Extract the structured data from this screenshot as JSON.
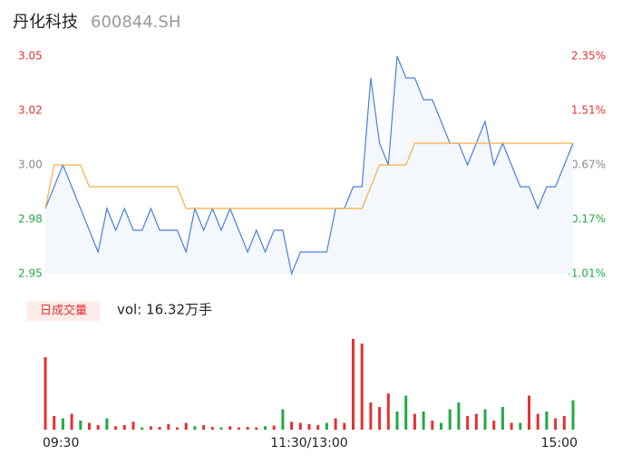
{
  "header": {
    "title": "丹化科技",
    "code": "600844.SH"
  },
  "chart_data": [
    {
      "type": "line",
      "x": [
        0,
        4,
        8,
        12,
        16,
        20,
        24,
        28,
        32,
        36,
        40,
        44,
        48,
        52,
        56,
        60,
        64,
        68,
        72,
        76,
        80,
        84,
        88,
        92,
        96,
        100,
        104,
        108,
        112,
        116,
        120,
        124,
        128,
        132,
        136,
        140,
        144,
        148,
        152,
        156,
        160,
        164,
        168,
        172,
        176,
        180,
        184,
        188,
        192,
        196,
        200,
        204,
        208,
        212,
        216,
        220,
        224,
        228,
        232,
        236,
        240
      ],
      "xlim": [
        0,
        240
      ],
      "xticks": [
        {
          "value": 0,
          "label": "09:30"
        },
        {
          "value": 120,
          "label": "11:30/13:00"
        },
        {
          "value": 240,
          "label": "15:00"
        }
      ],
      "series": [
        {
          "name": "price",
          "color": "#4a7fe0",
          "values": [
            2.98,
            2.99,
            3.0,
            2.99,
            2.98,
            2.97,
            2.96,
            2.98,
            2.97,
            2.98,
            2.97,
            2.97,
            2.98,
            2.97,
            2.97,
            2.97,
            2.96,
            2.98,
            2.97,
            2.98,
            2.97,
            2.98,
            2.97,
            2.96,
            2.97,
            2.96,
            2.97,
            2.97,
            2.95,
            2.96,
            2.96,
            2.96,
            2.96,
            2.98,
            2.98,
            2.99,
            2.99,
            3.04,
            3.01,
            3.0,
            3.05,
            3.04,
            3.04,
            3.03,
            3.03,
            3.02,
            3.01,
            3.01,
            3.0,
            3.01,
            3.02,
            3.0,
            3.01,
            3.0,
            2.99,
            2.99,
            2.98,
            2.99,
            2.99,
            3.0,
            3.01
          ]
        },
        {
          "name": "average",
          "color": "#f5b041",
          "values": [
            2.98,
            3.0,
            3.0,
            3.0,
            3.0,
            2.99,
            2.99,
            2.99,
            2.99,
            2.99,
            2.99,
            2.99,
            2.99,
            2.99,
            2.99,
            2.99,
            2.98,
            2.98,
            2.98,
            2.98,
            2.98,
            2.98,
            2.98,
            2.98,
            2.98,
            2.98,
            2.98,
            2.98,
            2.98,
            2.98,
            2.98,
            2.98,
            2.98,
            2.98,
            2.98,
            2.98,
            2.98,
            2.99,
            3.0,
            3.0,
            3.0,
            3.0,
            3.01,
            3.01,
            3.01,
            3.01,
            3.01,
            3.01,
            3.01,
            3.01,
            3.01,
            3.01,
            3.01,
            3.01,
            3.01,
            3.01,
            3.01,
            3.01,
            3.01,
            3.01,
            3.01
          ]
        }
      ],
      "ylim": [
        2.95,
        3.05
      ],
      "yticks": [
        {
          "value": 2.95,
          "label": "2.95"
        },
        {
          "value": 2.975,
          "label": "2.98"
        },
        {
          "value": 3.0,
          "label": "3.00"
        },
        {
          "value": 3.025,
          "label": "3.02"
        },
        {
          "value": 3.05,
          "label": "3.05"
        }
      ],
      "y2lim": [
        -1.01,
        2.35
      ],
      "y2ticks": [
        {
          "value": -1.01,
          "label": "-1.01%"
        },
        {
          "value": -0.17,
          "label": "-0.17%"
        },
        {
          "value": 0.67,
          "label": "0.67%"
        },
        {
          "value": 1.51,
          "label": "1.51%"
        },
        {
          "value": 2.35,
          "label": "2.35%"
        }
      ]
    },
    {
      "type": "bar",
      "title": "日成交量",
      "subtitle": "vol: 16.32万手",
      "ylim": [
        0,
        4000
      ],
      "values": [
        3200,
        600,
        500,
        700,
        400,
        300,
        200,
        500,
        150,
        200,
        350,
        100,
        150,
        120,
        250,
        100,
        300,
        150,
        200,
        120,
        100,
        150,
        100,
        120,
        100,
        150,
        180,
        900,
        350,
        300,
        250,
        200,
        300,
        500,
        300,
        4000,
        3800,
        1200,
        1000,
        1600,
        800,
        1500,
        700,
        800,
        400,
        300,
        900,
        1200,
        600,
        700,
        900,
        400,
        1000,
        300,
        300,
        1500,
        700,
        800,
        500,
        600,
        1300
      ],
      "colors": [
        "#e83030",
        "#e83030",
        "#22aa44",
        "#e83030",
        "#22aa44",
        "#e83030",
        "#e83030",
        "#22aa44",
        "#e83030",
        "#e83030",
        "#e83030",
        "#22aa44",
        "#e83030",
        "#e83030",
        "#e83030",
        "#e83030",
        "#e83030",
        "#22aa44",
        "#e83030",
        "#e83030",
        "#22aa44",
        "#e83030",
        "#e83030",
        "#e83030",
        "#e83030",
        "#22aa44",
        "#e83030",
        "#22aa44",
        "#e83030",
        "#e83030",
        "#e83030",
        "#e83030",
        "#22aa44",
        "#e83030",
        "#e83030",
        "#e83030",
        "#e83030",
        "#e83030",
        "#e83030",
        "#e83030",
        "#22aa44",
        "#22aa44",
        "#e83030",
        "#22aa44",
        "#e83030",
        "#22aa44",
        "#22aa44",
        "#22aa44",
        "#e83030",
        "#e83030",
        "#22aa44",
        "#e83030",
        "#22aa44",
        "#e83030",
        "#22aa44",
        "#e83030",
        "#e83030",
        "#22aa44",
        "#e83030",
        "#e83030",
        "#22aa44"
      ]
    }
  ]
}
